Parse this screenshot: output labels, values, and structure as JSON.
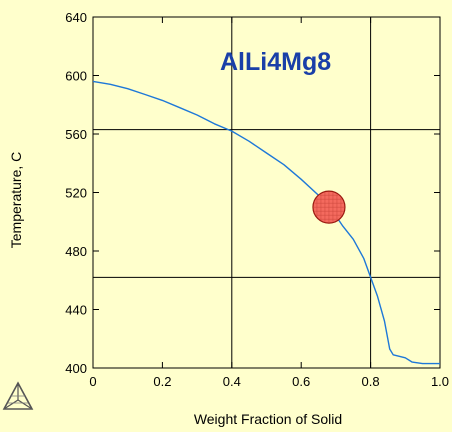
{
  "chart_data": {
    "type": "line",
    "title": "AlLi4Mg8",
    "xlabel": "Weight Fraction of Solid",
    "ylabel": "Temperature, C",
    "xlim": [
      0,
      1.0
    ],
    "ylim": [
      400,
      640
    ],
    "x_ticks": [
      "0",
      "0.2",
      "0.4",
      "0.6",
      "0.8",
      "1.0"
    ],
    "y_ticks": [
      "400",
      "440",
      "480",
      "520",
      "560",
      "600",
      "640"
    ],
    "x_tick_values": [
      0,
      0.2,
      0.4,
      0.6,
      0.8,
      1.0
    ],
    "y_tick_values": [
      400,
      440,
      480,
      520,
      560,
      600,
      640
    ],
    "gridlines": {
      "x": [
        0.4,
        0.8
      ],
      "y": [
        462,
        563
      ]
    },
    "series": [
      {
        "color": "#1e78d8",
        "x": [
          0,
          0.05,
          0.1,
          0.15,
          0.2,
          0.25,
          0.3,
          0.35,
          0.4,
          0.45,
          0.5,
          0.55,
          0.6,
          0.65,
          0.7,
          0.72,
          0.75,
          0.78,
          0.8,
          0.82,
          0.84,
          0.855,
          0.865,
          0.9,
          0.92,
          0.95,
          1.0
        ],
        "y": [
          596,
          594,
          591,
          587,
          583,
          578,
          573,
          567,
          562,
          555,
          547,
          539,
          529,
          518,
          504,
          497,
          488,
          475,
          462,
          449,
          432,
          413,
          409,
          407,
          404,
          403,
          403
        ]
      }
    ],
    "marker": {
      "x": 0.68,
      "y": 510,
      "color": "#f46a5e",
      "stroke": "#9a1a10"
    }
  }
}
